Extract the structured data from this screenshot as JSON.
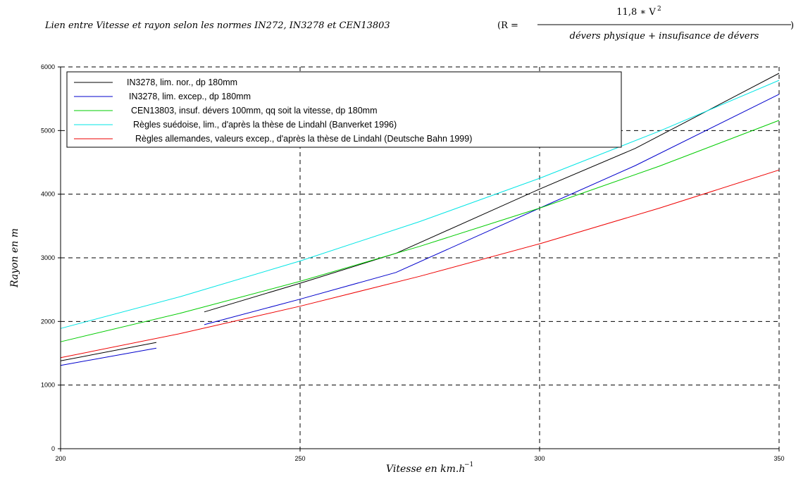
{
  "title": {
    "prefix": "Lien entre Vitesse et rayon selon les normes IN272, IN3278 et CEN13803",
    "formula_lhs": "(R =",
    "numerator": "11,8 ∗ V",
    "numerator_exp": "2",
    "denominator": "dévers physique  +  insufisance de dévers",
    "close_paren": ")"
  },
  "chart_data": {
    "type": "line",
    "xlabel": "Vitesse en km.h",
    "xlabel_exp": "−1",
    "ylabel": "Rayon en m",
    "xlim": [
      200,
      350
    ],
    "ylim": [
      0,
      6000
    ],
    "x_ticks": [
      200,
      250,
      300,
      350
    ],
    "y_ticks": [
      0,
      1000,
      2000,
      3000,
      4000,
      5000,
      6000
    ],
    "grid": true,
    "grid_style": "dashed",
    "legend_position": "top-left",
    "series": [
      {
        "name": "IN3278, lim. nor., dp 180mm",
        "color": "#000000",
        "segments": [
          [
            [
              200,
              1380
            ],
            [
              220,
              1670
            ]
          ],
          [
            [
              230,
              2150
            ],
            [
              250,
              2600
            ],
            [
              270,
              3070
            ],
            [
              300,
              4080
            ],
            [
              320,
              4720
            ],
            [
              350,
              5900
            ]
          ]
        ]
      },
      {
        "name": "IN3278, lim. excep., dp 180mm",
        "color": "#0000cc",
        "segments": [
          [
            [
              200,
              1310
            ],
            [
              220,
              1580
            ]
          ],
          [
            [
              230,
              1950
            ],
            [
              250,
              2350
            ],
            [
              270,
              2770
            ],
            [
              300,
              3780
            ],
            [
              320,
              4450
            ],
            [
              350,
              5570
            ]
          ]
        ]
      },
      {
        "name": "CEN13803, insuf. dévers 100mm, qq soit la vitesse, dp 180mm",
        "color": "#00cc00",
        "segments": [
          [
            [
              200,
              1680
            ],
            [
              225,
              2130
            ],
            [
              250,
              2630
            ],
            [
              275,
              3180
            ],
            [
              300,
              3780
            ],
            [
              325,
              4440
            ],
            [
              350,
              5160
            ]
          ]
        ]
      },
      {
        "name": "Règles suédoise, lim., d'après la thèse de Lindahl (Banverket 1996)",
        "color": "#00e5e5",
        "segments": [
          [
            [
              200,
              1890
            ],
            [
              225,
              2390
            ],
            [
              250,
              2950
            ],
            [
              275,
              3570
            ],
            [
              300,
              4250
            ],
            [
              325,
              4990
            ],
            [
              350,
              5790
            ]
          ]
        ]
      },
      {
        "name": "Règles allemandes, valeurs excep., d'après la thèse de Lindahl (Deutsche Bahn 1999)",
        "color": "#ee0000",
        "segments": [
          [
            [
              200,
              1430
            ],
            [
              225,
              1810
            ],
            [
              250,
              2240
            ],
            [
              275,
              2710
            ],
            [
              300,
              3220
            ],
            [
              325,
              3780
            ],
            [
              350,
              4380
            ]
          ]
        ]
      }
    ]
  }
}
